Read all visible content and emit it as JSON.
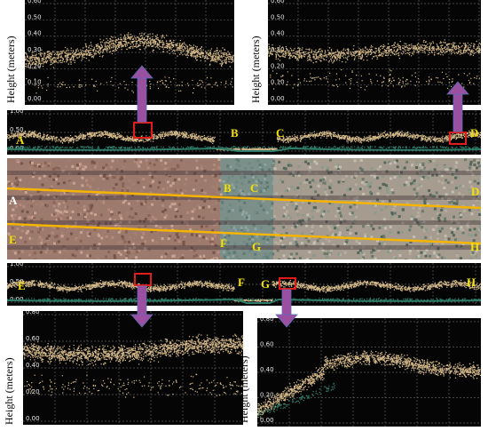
{
  "y_axis_label": "Height (meters)",
  "panels": {
    "top_left": {
      "ticks": [
        "0.60",
        "0.50",
        "0.40",
        "0.30",
        "0.20",
        "0.10",
        "0.00"
      ]
    },
    "top_right": {
      "ticks": [
        "0.60",
        "0.50",
        "0.40",
        "0.30",
        "0.20",
        "0.10",
        "0.00"
      ]
    },
    "strip_top": {
      "ticks": [
        "1.00",
        "0.50",
        "0.00"
      ]
    },
    "strip_bottom": {
      "ticks": [
        "1.00",
        "0.50",
        "0.00"
      ]
    },
    "bottom_left": {
      "ticks": [
        "0.80",
        "0.60",
        "0.40",
        "0.20",
        "0.00"
      ]
    },
    "bottom_right": {
      "ticks": [
        "0.80",
        "0.60",
        "0.40",
        "0.20",
        "0.00"
      ]
    }
  },
  "points": [
    "A",
    "B",
    "C",
    "D",
    "E",
    "F",
    "G",
    "H"
  ],
  "colors": {
    "points": "#d4b98a",
    "ground": "#2e7d68",
    "transect": "#f5b400",
    "arrow": "#9b4fa0",
    "box": "#e21b1b"
  }
}
